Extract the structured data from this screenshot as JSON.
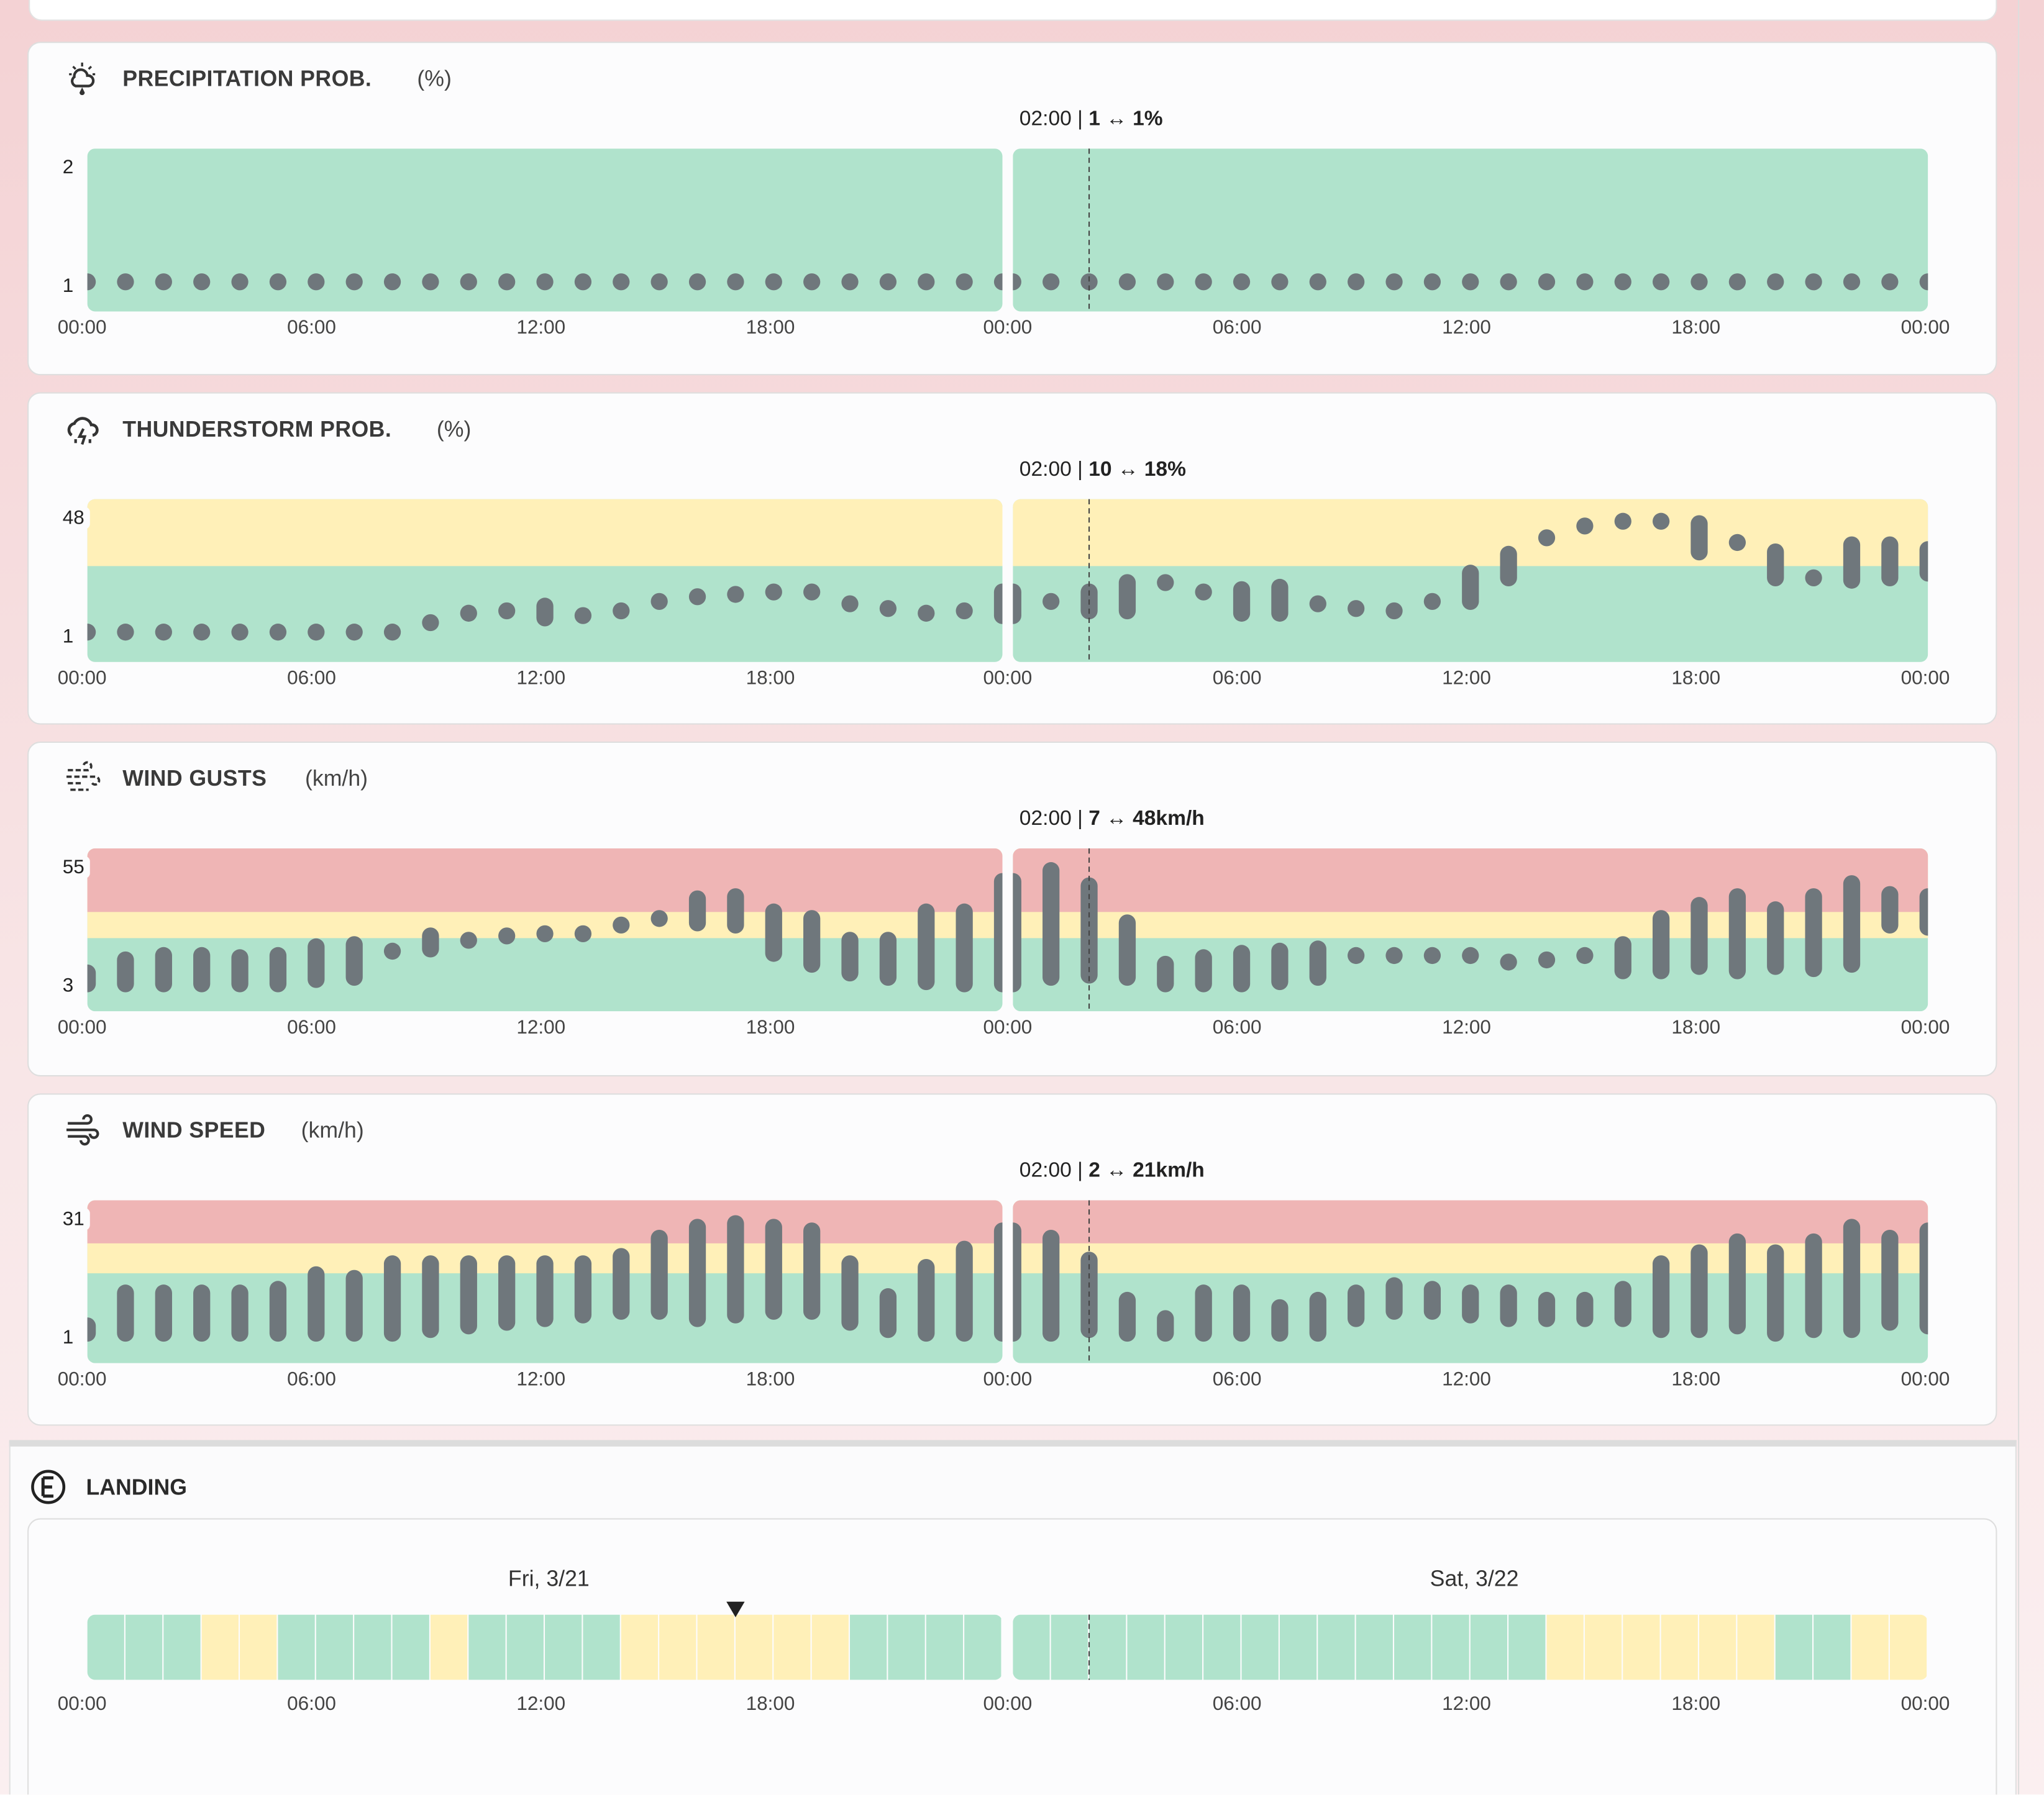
{
  "colors": {
    "green": "#b0e3cc",
    "yellow": "#fff0b8",
    "red": "#efb5b5",
    "mark": "#6f777c"
  },
  "x_ticks": [
    "00:00",
    "06:00",
    "12:00",
    "18:00",
    "00:00",
    "06:00",
    "12:00",
    "18:00",
    "00:00"
  ],
  "chart_data": [
    {
      "id": "precip",
      "type": "range-dot",
      "title": "PRECIPITATION PROB.",
      "unit": "(%)",
      "icon": "rain-cloud-icon",
      "y_labels": [
        "2",
        "1"
      ],
      "ylim": [
        0.74,
        2.17
      ],
      "thresholds": {
        "yellow": 99,
        "red": 99
      },
      "hover": {
        "time": "02:00",
        "range": "1 ↔ 1%"
      },
      "days": [
        [
          [
            1,
            1
          ],
          [
            1,
            1
          ],
          [
            1,
            1
          ],
          [
            1,
            1
          ],
          [
            1,
            1
          ],
          [
            1,
            1
          ],
          [
            1,
            1
          ],
          [
            1,
            1
          ],
          [
            1,
            1
          ],
          [
            1,
            1
          ],
          [
            1,
            1
          ],
          [
            1,
            1
          ],
          [
            1,
            1
          ],
          [
            1,
            1
          ],
          [
            1,
            1
          ],
          [
            1,
            1
          ],
          [
            1,
            1
          ],
          [
            1,
            1
          ],
          [
            1,
            1
          ],
          [
            1,
            1
          ],
          [
            1,
            1
          ],
          [
            1,
            1
          ],
          [
            1,
            1
          ],
          [
            1,
            1
          ],
          [
            1,
            1
          ]
        ],
        [
          [
            1,
            1
          ],
          [
            1,
            1
          ],
          [
            1,
            1
          ],
          [
            1,
            1
          ],
          [
            1,
            1
          ],
          [
            1,
            1
          ],
          [
            1,
            1
          ],
          [
            1,
            1
          ],
          [
            1,
            1
          ],
          [
            1,
            1
          ],
          [
            1,
            1
          ],
          [
            1,
            1
          ],
          [
            1,
            1
          ],
          [
            1,
            1
          ],
          [
            1,
            1
          ],
          [
            1,
            1
          ],
          [
            1,
            1
          ],
          [
            1,
            1
          ],
          [
            1,
            1
          ],
          [
            1,
            1
          ],
          [
            1,
            1
          ],
          [
            1,
            1
          ],
          [
            1,
            1
          ],
          [
            1,
            1
          ],
          [
            1,
            1
          ]
        ]
      ]
    },
    {
      "id": "thunder",
      "type": "range-dot",
      "title": "THUNDERSTORM PROB.",
      "unit": "(%)",
      "icon": "thunderstorm-icon",
      "y_labels": [
        "48",
        "1"
      ],
      "ylim": [
        -11.7,
        57.4
      ],
      "thresholds": {
        "yellow": 29,
        "red": 99
      },
      "hover": {
        "time": "02:00",
        "range": "10 ↔ 18%"
      },
      "days": [
        [
          [
            1,
            1
          ],
          [
            1,
            1
          ],
          [
            1,
            1
          ],
          [
            1,
            1
          ],
          [
            1,
            1
          ],
          [
            1,
            1
          ],
          [
            1,
            1
          ],
          [
            1,
            1
          ],
          [
            1,
            1
          ],
          [
            5,
            5
          ],
          [
            9,
            9
          ],
          [
            10,
            10
          ],
          [
            7,
            12
          ],
          [
            8,
            8
          ],
          [
            10,
            10
          ],
          [
            14,
            14
          ],
          [
            16,
            16
          ],
          [
            17,
            17
          ],
          [
            18,
            18
          ],
          [
            18,
            18
          ],
          [
            13,
            13
          ],
          [
            11,
            11
          ],
          [
            9,
            9
          ],
          [
            10,
            10
          ],
          [
            8,
            18
          ]
        ],
        [
          [
            8,
            18
          ],
          [
            14,
            14
          ],
          [
            10,
            18
          ],
          [
            10,
            22
          ],
          [
            22,
            22
          ],
          [
            18,
            18
          ],
          [
            9,
            19
          ],
          [
            9,
            20
          ],
          [
            13,
            13
          ],
          [
            11,
            11
          ],
          [
            10,
            10
          ],
          [
            14,
            14
          ],
          [
            14,
            26
          ],
          [
            24,
            34
          ],
          [
            41,
            41
          ],
          [
            46,
            46
          ],
          [
            48,
            48
          ],
          [
            48,
            48
          ],
          [
            35,
            47
          ],
          [
            39,
            39
          ],
          [
            24,
            35
          ],
          [
            24,
            24
          ],
          [
            23,
            38
          ],
          [
            24,
            38
          ],
          [
            26,
            36
          ]
        ]
      ]
    },
    {
      "id": "gusts",
      "type": "range-dot",
      "title": "WIND GUSTS",
      "unit": "(km/h)",
      "icon": "wind-gusts-icon",
      "y_labels": [
        "55",
        "3"
      ],
      "ylim": [
        -9.6,
        65.2
      ],
      "thresholds": {
        "yellow": 24,
        "red": 36
      },
      "hover": {
        "time": "02:00",
        "range": "7 ↔ 48km/h"
      },
      "days": [
        [
          [
            3,
            8
          ],
          [
            3,
            14
          ],
          [
            3,
            16
          ],
          [
            3,
            16
          ],
          [
            3,
            15
          ],
          [
            3,
            16
          ],
          [
            5,
            20
          ],
          [
            6,
            21
          ],
          [
            18,
            18
          ],
          [
            19,
            25
          ],
          [
            23,
            23
          ],
          [
            25,
            25
          ],
          [
            26,
            26
          ],
          [
            26,
            26
          ],
          [
            30,
            30
          ],
          [
            33,
            33
          ],
          [
            31,
            42
          ],
          [
            30,
            43
          ],
          [
            17,
            36
          ],
          [
            12,
            33
          ],
          [
            8,
            23
          ],
          [
            6,
            23
          ],
          [
            4,
            36
          ],
          [
            3,
            36
          ],
          [
            3,
            50
          ]
        ],
        [
          [
            3,
            50
          ],
          [
            6,
            55
          ],
          [
            7,
            48
          ],
          [
            6,
            31
          ],
          [
            3,
            12
          ],
          [
            3,
            15
          ],
          [
            3,
            17
          ],
          [
            4,
            18
          ],
          [
            6,
            19
          ],
          [
            16,
            16
          ],
          [
            16,
            16
          ],
          [
            16,
            16
          ],
          [
            16,
            16
          ],
          [
            13,
            13
          ],
          [
            14,
            14
          ],
          [
            16,
            16
          ],
          [
            9,
            21
          ],
          [
            9,
            33
          ],
          [
            11,
            39
          ],
          [
            9,
            43
          ],
          [
            11,
            37
          ],
          [
            10,
            43
          ],
          [
            12,
            49
          ],
          [
            30,
            44
          ],
          [
            29,
            43
          ]
        ]
      ]
    },
    {
      "id": "wind",
      "type": "range-dot",
      "title": "WIND SPEED",
      "unit": "(km/h)",
      "icon": "wind-icon",
      "y_labels": [
        "31",
        "1"
      ],
      "ylim": [
        -7.2,
        37.4
      ],
      "thresholds": {
        "yellow": 17.4,
        "red": 25.6
      },
      "hover": {
        "time": "02:00",
        "range": "2 ↔ 21km/h"
      },
      "days": [
        [
          [
            1,
            3
          ],
          [
            1,
            12
          ],
          [
            1,
            12
          ],
          [
            1,
            12
          ],
          [
            1,
            12
          ],
          [
            1,
            13
          ],
          [
            1,
            17
          ],
          [
            1,
            16
          ],
          [
            1,
            20
          ],
          [
            2,
            20
          ],
          [
            3,
            20
          ],
          [
            4,
            20
          ],
          [
            5,
            20
          ],
          [
            6,
            20
          ],
          [
            7,
            22
          ],
          [
            7,
            27
          ],
          [
            5,
            30
          ],
          [
            6,
            31
          ],
          [
            7,
            30
          ],
          [
            7,
            29
          ],
          [
            4,
            20
          ],
          [
            2,
            11
          ],
          [
            1,
            19
          ],
          [
            1,
            24
          ],
          [
            1,
            29
          ]
        ],
        [
          [
            1,
            29
          ],
          [
            1,
            27
          ],
          [
            2,
            21
          ],
          [
            1,
            10
          ],
          [
            1,
            5
          ],
          [
            1,
            12
          ],
          [
            1,
            12
          ],
          [
            1,
            8
          ],
          [
            1,
            10
          ],
          [
            5,
            12
          ],
          [
            7,
            14
          ],
          [
            7,
            13
          ],
          [
            6,
            12
          ],
          [
            5,
            12
          ],
          [
            5,
            10
          ],
          [
            5,
            10
          ],
          [
            5,
            13
          ],
          [
            2,
            20
          ],
          [
            2,
            23
          ],
          [
            3,
            26
          ],
          [
            1,
            23
          ],
          [
            2,
            26
          ],
          [
            2,
            30
          ],
          [
            4,
            27
          ],
          [
            3,
            29
          ]
        ]
      ]
    }
  ],
  "landing": {
    "title": "LANDING",
    "icon": "landing-e-icon",
    "dates": [
      "Fri, 3/21",
      "Sat, 3/22"
    ],
    "days": [
      [
        "G",
        "G",
        "G",
        "Y",
        "Y",
        "G",
        "G",
        "G",
        "G",
        "Y",
        "G",
        "G",
        "G",
        "G",
        "Y",
        "Y",
        "Y",
        "Y",
        "Y",
        "Y",
        "G",
        "G",
        "G",
        "G"
      ],
      [
        "G",
        "G",
        "G",
        "G",
        "G",
        "G",
        "G",
        "G",
        "G",
        "G",
        "G",
        "G",
        "G",
        "G",
        "Y",
        "Y",
        "Y",
        "Y",
        "Y",
        "Y",
        "G",
        "G",
        "Y",
        "Y"
      ]
    ],
    "marker_hour": 17
  }
}
